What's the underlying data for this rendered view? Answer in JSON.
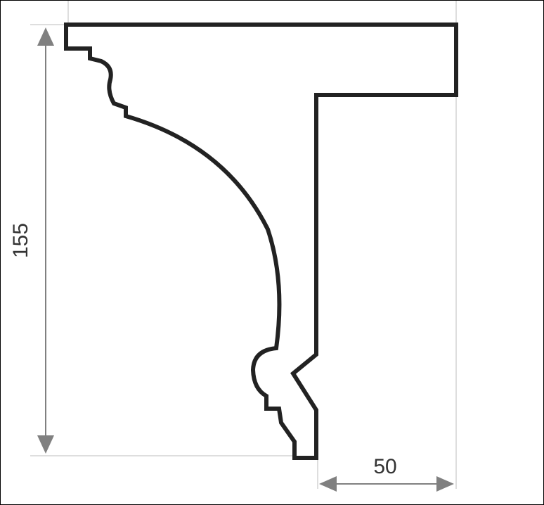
{
  "drawing": {
    "height_dimension": "155",
    "width_dimension": "50"
  },
  "colors": {
    "profile_stroke": "#222222",
    "dimension_line": "#808080",
    "extension_line": "#bdbdbd",
    "text": "#333333",
    "background": "#ffffff"
  }
}
